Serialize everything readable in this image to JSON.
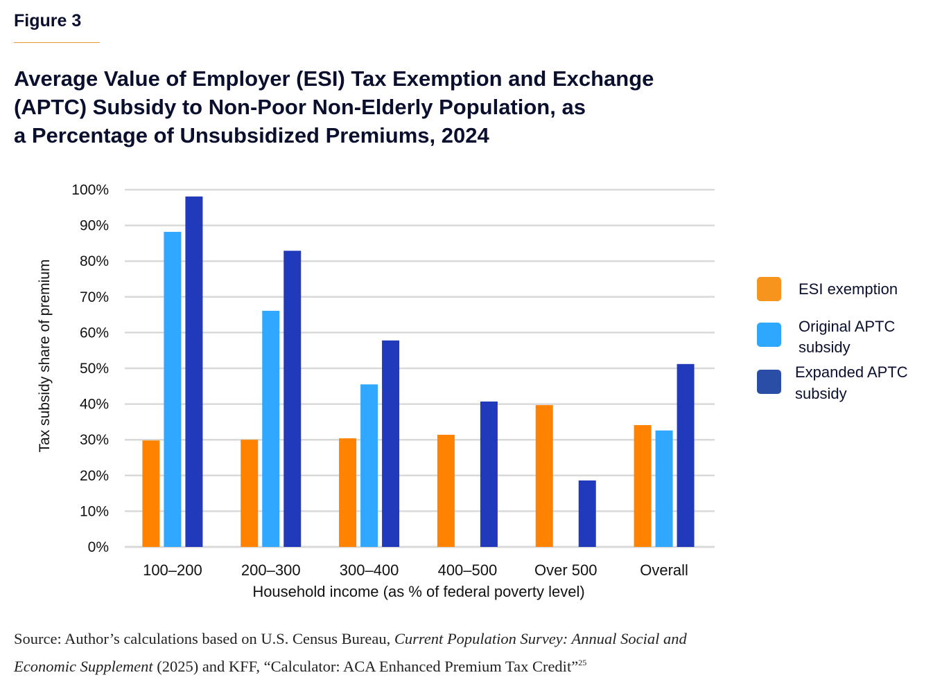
{
  "figure_label": "Figure 3",
  "title": "Average Value of Employer (ESI) Tax Exemption and Exchange (APTC) Subsidy to Non-Poor Non-Elderly Population, as a Percentage of Unsubsidized Premiums, 2024",
  "title_lines": [
    "Average Value of Employer (ESI) Tax Exemption and Exchange",
    "(APTC) Subsidy to Non-Poor Non-Elderly Population, as",
    "a Percentage of Unsubsidized Premiums, 2024"
  ],
  "colors": {
    "accent_rule": "#f0962a",
    "title": "#0a0f2e",
    "gridline": "#d9d9d9"
  },
  "chart_data": {
    "type": "bar",
    "title": "Average Value of Employer (ESI) Tax Exemption and Exchange (APTC) Subsidy to Non-Poor Non-Elderly Population, as a Percentage of Unsubsidized Premiums, 2024",
    "xlabel": "Household income (as % of federal poverty level)",
    "ylabel": "Tax subsidy share of premium",
    "categories": [
      "100–200",
      "200–300",
      "300–400",
      "400–500",
      "Over 500",
      "Overall"
    ],
    "series": [
      {
        "name": "ESI exemption",
        "color": "#ff8200",
        "legend_color": "#f7941d",
        "values": [
          29.8,
          30.0,
          30.4,
          31.4,
          39.7,
          34.1
        ]
      },
      {
        "name": "Original APTC subsidy",
        "color": "#30a8ff",
        "legend_color": "#2ea7ff",
        "values": [
          88.2,
          66.1,
          45.5,
          null,
          null,
          32.6
        ]
      },
      {
        "name": "Expanded APTC subsidy",
        "color": "#2139bb",
        "legend_color": "#2a4ea6",
        "values": [
          98.1,
          82.9,
          57.8,
          40.7,
          18.6,
          51.2
        ]
      }
    ],
    "ylim": [
      0,
      100
    ],
    "yticks": [
      "0%",
      "10%",
      "20%",
      "30%",
      "40%",
      "50%",
      "60%",
      "70%",
      "80%",
      "90%",
      "100%"
    ],
    "ytick_values": [
      0,
      10,
      20,
      30,
      40,
      50,
      60,
      70,
      80,
      90,
      100
    ],
    "grid": true,
    "legend_position": "right",
    "legend": [
      {
        "lines": [
          "ESI exemption"
        ]
      },
      {
        "lines": [
          "Original APTC",
          "subsidy"
        ]
      },
      {
        "lines": [
          "Expanded APTC",
          "subsidy"
        ]
      }
    ]
  },
  "source": {
    "prefix": "Source: Author’s calculations based on U.S. Census Bureau, ",
    "italic1": "Current Population Survey: Annual Social and Economic Supplement",
    "middle": " (2025) and KFF, “Calculator: ACA Enhanced Premium Tax Credit”",
    "footnote": "25"
  }
}
